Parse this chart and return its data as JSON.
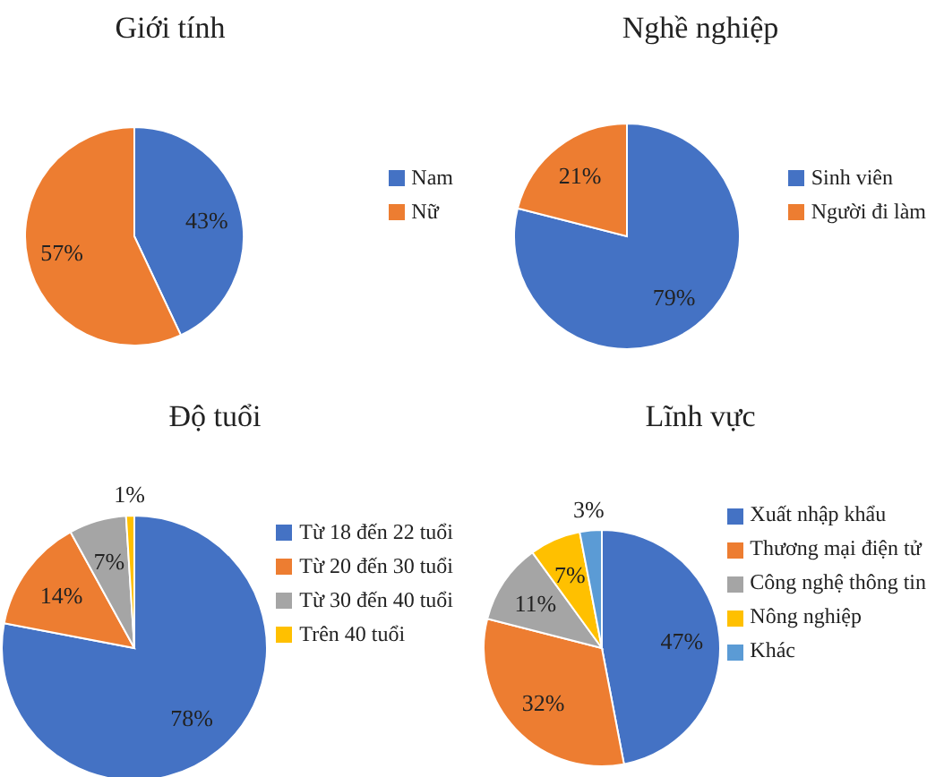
{
  "chart_data": [
    {
      "type": "pie",
      "title": "Giới tính",
      "categories": [
        "Nam",
        "Nữ"
      ],
      "values": [
        43,
        57
      ],
      "value_labels": [
        "43%",
        "57%"
      ],
      "colors": [
        "#4472c4",
        "#ed7d31"
      ],
      "legend": "right"
    },
    {
      "type": "pie",
      "title": "Nghề nghiệp",
      "categories": [
        "Sinh viên",
        "Người đi làm"
      ],
      "values": [
        79,
        21
      ],
      "value_labels": [
        "79%",
        "21%"
      ],
      "colors": [
        "#4472c4",
        "#ed7d31"
      ],
      "legend": "right"
    },
    {
      "type": "pie",
      "title": "Độ tuổi",
      "categories": [
        "Từ 18 đến 22 tuổi",
        "Từ 20 đến 30 tuổi",
        "Từ 30 đến 40 tuổi",
        "Trên 40 tuổi"
      ],
      "values": [
        78,
        14,
        7,
        1
      ],
      "value_labels": [
        "78%",
        "14%",
        "7%",
        "1%"
      ],
      "colors": [
        "#4472c4",
        "#ed7d31",
        "#a5a5a5",
        "#ffc000"
      ],
      "legend": "right"
    },
    {
      "type": "pie",
      "title": "Lĩnh vực",
      "categories": [
        "Xuất nhập khẩu",
        "Thương mại điện tử",
        "Công nghệ thông tin",
        "Nông nghiệp",
        "Khác"
      ],
      "values": [
        47,
        32,
        11,
        7,
        3
      ],
      "value_labels": [
        "47%",
        "32%",
        "11%",
        "7%",
        "3%"
      ],
      "colors": [
        "#4472c4",
        "#ed7d31",
        "#a5a5a5",
        "#ffc000",
        "#5b9bd5"
      ],
      "legend": "right"
    }
  ]
}
